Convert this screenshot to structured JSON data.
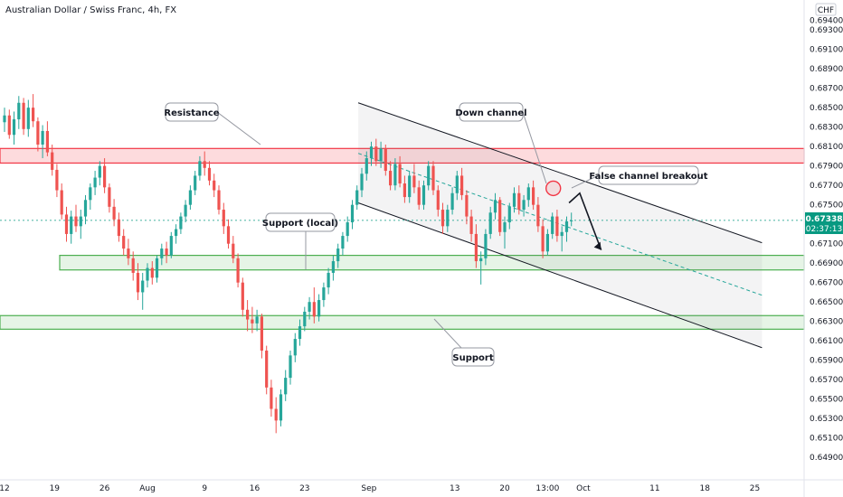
{
  "header": {
    "title": "Australian Dollar / Swiss Franc, 4h, FX",
    "currency": "CHF"
  },
  "price_tag": {
    "price": "0.67338",
    "countdown": "02:37:13",
    "color": "#089981"
  },
  "colors": {
    "up": "#26a69a",
    "down": "#ef5350",
    "resistance": "#f23645",
    "support": "#4caf50",
    "channel": "#131722",
    "channel_mid": "#26a69a"
  },
  "chart_data": {
    "type": "candlestick",
    "symbol": "AUDCHF",
    "timeframe": "4h",
    "y_axis": {
      "range": [
        0.648,
        0.6945
      ],
      "ticks": [
        0.649,
        0.651,
        0.653,
        0.655,
        0.657,
        0.659,
        0.661,
        0.663,
        0.665,
        0.667,
        0.669,
        0.671,
        0.673,
        0.675,
        0.677,
        0.679,
        0.681,
        0.683,
        0.685,
        0.687,
        0.689,
        0.691,
        0.693,
        0.694
      ],
      "tick_labels": [
        "0.64900",
        "0.65100",
        "0.65300",
        "0.65500",
        "0.65700",
        "0.65900",
        "0.66100",
        "0.66300",
        "0.66500",
        "0.66700",
        "0.66900",
        "0.67100",
        "0.67300",
        "0.67500",
        "0.67700",
        "0.67900",
        "0.68100",
        "0.68300",
        "0.68500",
        "0.68700",
        "0.68900",
        "0.69100",
        "0.69300",
        "0.69400"
      ]
    },
    "x_axis": {
      "tick_labels": [
        "12",
        "19",
        "26",
        "Aug",
        "9",
        "16",
        "23",
        "Sep",
        "13",
        "20",
        "13:00",
        "Oct",
        "11",
        "18",
        "25"
      ],
      "tick_days": [
        0,
        7,
        14,
        20,
        28,
        35,
        42,
        51,
        63,
        70,
        76,
        81,
        91,
        98,
        105
      ]
    },
    "zones": [
      {
        "name": "Resistance",
        "low": 0.6793,
        "high": 0.6808
      },
      {
        "name": "Support (local)",
        "low": 0.6683,
        "high": 0.6698
      },
      {
        "name": "Support",
        "low": 0.6622,
        "high": 0.6636
      }
    ],
    "annotations": [
      "Resistance",
      "Support (local)",
      "Down channel",
      "False channel breakout",
      "Support"
    ],
    "channel": {
      "upper_start": [
        49.5,
        0.6855
      ],
      "upper_end": [
        106,
        0.6711
      ],
      "lower_start": [
        49.5,
        0.6752
      ],
      "lower_end": [
        106,
        0.6603
      ],
      "mid_start": [
        49.5,
        0.6803
      ],
      "mid_end": [
        106,
        0.6657
      ]
    },
    "projection": {
      "from": [
        79,
        0.6752
      ],
      "peak": [
        80.5,
        0.6749
      ],
      "to": [
        83.5,
        0.6711
      ]
    },
    "candles": [
      [
        0,
        0.6835,
        0.685,
        0.6825,
        0.6842
      ],
      [
        0.67,
        0.6842,
        0.6848,
        0.6818,
        0.6822
      ],
      [
        1.33,
        0.6822,
        0.6846,
        0.6812,
        0.6838
      ],
      [
        2,
        0.6838,
        0.6862,
        0.6828,
        0.6855
      ],
      [
        2.67,
        0.6855,
        0.686,
        0.6822,
        0.6828
      ],
      [
        3.33,
        0.6828,
        0.6858,
        0.682,
        0.685
      ],
      [
        4,
        0.685,
        0.6864,
        0.683,
        0.6836
      ],
      [
        4.67,
        0.6836,
        0.684,
        0.6805,
        0.6812
      ],
      [
        5.33,
        0.6812,
        0.6832,
        0.6798,
        0.6826
      ],
      [
        6,
        0.6826,
        0.6836,
        0.68,
        0.6804
      ],
      [
        6.67,
        0.6804,
        0.6812,
        0.678,
        0.6786
      ],
      [
        7.33,
        0.6786,
        0.6792,
        0.6758,
        0.6765
      ],
      [
        8,
        0.6765,
        0.6772,
        0.6735,
        0.674
      ],
      [
        8.67,
        0.674,
        0.6748,
        0.6712,
        0.672
      ],
      [
        9.33,
        0.672,
        0.6744,
        0.671,
        0.6738
      ],
      [
        10,
        0.6738,
        0.675,
        0.6722,
        0.6728
      ],
      [
        10.67,
        0.6728,
        0.6745,
        0.6715,
        0.6738
      ],
      [
        11.33,
        0.6738,
        0.676,
        0.673,
        0.6755
      ],
      [
        12,
        0.6755,
        0.6772,
        0.6745,
        0.6768
      ],
      [
        12.67,
        0.6768,
        0.6785,
        0.676,
        0.6778
      ],
      [
        13.33,
        0.6778,
        0.6795,
        0.677,
        0.679
      ],
      [
        14,
        0.679,
        0.6798,
        0.6762,
        0.6768
      ],
      [
        14.67,
        0.6768,
        0.6772,
        0.6742,
        0.6748
      ],
      [
        15.33,
        0.6748,
        0.6756,
        0.6728,
        0.6735
      ],
      [
        16,
        0.6735,
        0.6742,
        0.6712,
        0.6718
      ],
      [
        16.67,
        0.6718,
        0.6725,
        0.6698,
        0.6705
      ],
      [
        17.33,
        0.6705,
        0.6715,
        0.6688,
        0.6695
      ],
      [
        18,
        0.6695,
        0.6702,
        0.6672,
        0.668
      ],
      [
        18.67,
        0.668,
        0.669,
        0.6652,
        0.666
      ],
      [
        19.33,
        0.666,
        0.668,
        0.6642,
        0.6672
      ],
      [
        20,
        0.6672,
        0.669,
        0.6665,
        0.6685
      ],
      [
        20.67,
        0.6685,
        0.6692,
        0.6668,
        0.6675
      ],
      [
        21.33,
        0.6675,
        0.6698,
        0.667,
        0.6695
      ],
      [
        22,
        0.6695,
        0.671,
        0.6688,
        0.6705
      ],
      [
        22.67,
        0.6705,
        0.6712,
        0.669,
        0.6698
      ],
      [
        23.33,
        0.6698,
        0.6722,
        0.6695,
        0.6718
      ],
      [
        24,
        0.6718,
        0.673,
        0.671,
        0.6725
      ],
      [
        24.67,
        0.6725,
        0.6742,
        0.672,
        0.6738
      ],
      [
        25.33,
        0.6738,
        0.6755,
        0.6732,
        0.675
      ],
      [
        26,
        0.675,
        0.677,
        0.6745,
        0.6765
      ],
      [
        26.67,
        0.6765,
        0.6785,
        0.676,
        0.678
      ],
      [
        27.33,
        0.678,
        0.68,
        0.6775,
        0.6795
      ],
      [
        28,
        0.6795,
        0.6805,
        0.678,
        0.6788
      ],
      [
        28.67,
        0.6788,
        0.6795,
        0.677,
        0.6775
      ],
      [
        29.33,
        0.6775,
        0.6782,
        0.6758,
        0.6765
      ],
      [
        30,
        0.6765,
        0.677,
        0.674,
        0.6745
      ],
      [
        30.67,
        0.6745,
        0.6752,
        0.672,
        0.6728
      ],
      [
        31.33,
        0.6728,
        0.6735,
        0.6705,
        0.671
      ],
      [
        32,
        0.671,
        0.6718,
        0.669,
        0.6695
      ],
      [
        32.67,
        0.6695,
        0.67,
        0.6665,
        0.667
      ],
      [
        33.33,
        0.667,
        0.6675,
        0.6635,
        0.6642
      ],
      [
        34,
        0.6642,
        0.6652,
        0.662,
        0.6632
      ],
      [
        34.67,
        0.6632,
        0.6645,
        0.6618,
        0.6628
      ],
      [
        35.33,
        0.6628,
        0.6642,
        0.662,
        0.6635
      ],
      [
        36,
        0.6635,
        0.6638,
        0.6592,
        0.66
      ],
      [
        36.67,
        0.66,
        0.6605,
        0.6555,
        0.6562
      ],
      [
        37.33,
        0.6562,
        0.657,
        0.6532,
        0.654
      ],
      [
        38,
        0.654,
        0.6552,
        0.6515,
        0.6528
      ],
      [
        38.67,
        0.6528,
        0.656,
        0.6522,
        0.6555
      ],
      [
        39.33,
        0.6555,
        0.658,
        0.6548,
        0.6572
      ],
      [
        40,
        0.6572,
        0.66,
        0.6565,
        0.6595
      ],
      [
        40.67,
        0.6595,
        0.6618,
        0.6588,
        0.6612
      ],
      [
        41.33,
        0.6612,
        0.6632,
        0.6605,
        0.6625
      ],
      [
        42,
        0.6625,
        0.6645,
        0.662,
        0.664
      ],
      [
        42.67,
        0.664,
        0.6655,
        0.6632,
        0.665
      ],
      [
        43.33,
        0.665,
        0.6665,
        0.6628,
        0.6635
      ],
      [
        44,
        0.6635,
        0.6658,
        0.663,
        0.6652
      ],
      [
        44.67,
        0.6652,
        0.667,
        0.6645,
        0.6665
      ],
      [
        45.33,
        0.6665,
        0.6685,
        0.6658,
        0.668
      ],
      [
        46,
        0.668,
        0.6698,
        0.6672,
        0.6692
      ],
      [
        46.67,
        0.6692,
        0.671,
        0.6685,
        0.6705
      ],
      [
        47.33,
        0.6705,
        0.6722,
        0.6698,
        0.6718
      ],
      [
        48,
        0.6718,
        0.6738,
        0.6712,
        0.6732
      ],
      [
        48.67,
        0.6732,
        0.6755,
        0.6725,
        0.675
      ],
      [
        49.33,
        0.675,
        0.677,
        0.6745,
        0.6765
      ],
      [
        50,
        0.6765,
        0.6788,
        0.6758,
        0.6782
      ],
      [
        50.67,
        0.6782,
        0.6805,
        0.6775,
        0.6798
      ],
      [
        51.33,
        0.6798,
        0.6815,
        0.679,
        0.681
      ],
      [
        52,
        0.681,
        0.6818,
        0.679,
        0.6795
      ],
      [
        52.67,
        0.6795,
        0.6815,
        0.6788,
        0.6808
      ],
      [
        53.33,
        0.6808,
        0.6812,
        0.678,
        0.6785
      ],
      [
        54,
        0.6785,
        0.6795,
        0.6765,
        0.677
      ],
      [
        54.67,
        0.677,
        0.6798,
        0.6765,
        0.6792
      ],
      [
        55.33,
        0.6792,
        0.68,
        0.6768,
        0.6772
      ],
      [
        56,
        0.6772,
        0.678,
        0.6752,
        0.6758
      ],
      [
        56.67,
        0.6758,
        0.6785,
        0.6752,
        0.678
      ],
      [
        57.33,
        0.678,
        0.6792,
        0.6762,
        0.6768
      ],
      [
        58,
        0.6768,
        0.6775,
        0.6745,
        0.675
      ],
      [
        58.67,
        0.675,
        0.6775,
        0.6745,
        0.677
      ],
      [
        59.33,
        0.677,
        0.6795,
        0.6765,
        0.679
      ],
      [
        60,
        0.679,
        0.6795,
        0.676,
        0.6765
      ],
      [
        60.67,
        0.6765,
        0.677,
        0.6738,
        0.6745
      ],
      [
        61.33,
        0.6745,
        0.6752,
        0.672,
        0.6728
      ],
      [
        62,
        0.6728,
        0.675,
        0.6722,
        0.6745
      ],
      [
        62.67,
        0.6745,
        0.6768,
        0.674,
        0.6762
      ],
      [
        63.33,
        0.6762,
        0.6785,
        0.6755,
        0.678
      ],
      [
        64,
        0.678,
        0.6788,
        0.6755,
        0.676
      ],
      [
        64.67,
        0.676,
        0.6765,
        0.673,
        0.6738
      ],
      [
        65.33,
        0.6738,
        0.6745,
        0.6712,
        0.672
      ],
      [
        66,
        0.672,
        0.673,
        0.6685,
        0.6692
      ],
      [
        66.67,
        0.6692,
        0.6702,
        0.6668,
        0.6695
      ],
      [
        67.33,
        0.6695,
        0.6725,
        0.6688,
        0.672
      ],
      [
        68,
        0.672,
        0.6748,
        0.6715,
        0.6742
      ],
      [
        68.67,
        0.6742,
        0.6762,
        0.6735,
        0.6755
      ],
      [
        69.33,
        0.6755,
        0.6758,
        0.6718,
        0.6722
      ],
      [
        70,
        0.6722,
        0.6738,
        0.6705,
        0.6732
      ],
      [
        70.67,
        0.6732,
        0.6752,
        0.6725,
        0.6748
      ],
      [
        71.33,
        0.6748,
        0.6768,
        0.6742,
        0.6762
      ],
      [
        72,
        0.6762,
        0.677,
        0.674,
        0.6745
      ],
      [
        72.67,
        0.6745,
        0.676,
        0.6738,
        0.6755
      ],
      [
        73.33,
        0.6755,
        0.6772,
        0.6748,
        0.6768
      ],
      [
        74,
        0.6768,
        0.6775,
        0.6745,
        0.675
      ],
      [
        74.67,
        0.675,
        0.6758,
        0.6722,
        0.6728
      ],
      [
        75.33,
        0.6728,
        0.6735,
        0.6695,
        0.6702
      ],
      [
        76,
        0.6702,
        0.6725,
        0.6698,
        0.672
      ],
      [
        76.67,
        0.672,
        0.6742,
        0.6715,
        0.6738
      ],
      [
        77.33,
        0.6738,
        0.6745,
        0.6712,
        0.6718
      ],
      [
        78,
        0.6718,
        0.6728,
        0.6702,
        0.6722
      ],
      [
        78.67,
        0.6722,
        0.6738,
        0.6712,
        0.6733
      ],
      [
        79.33,
        0.6733,
        0.6742,
        0.6728,
        0.6734
      ]
    ]
  }
}
